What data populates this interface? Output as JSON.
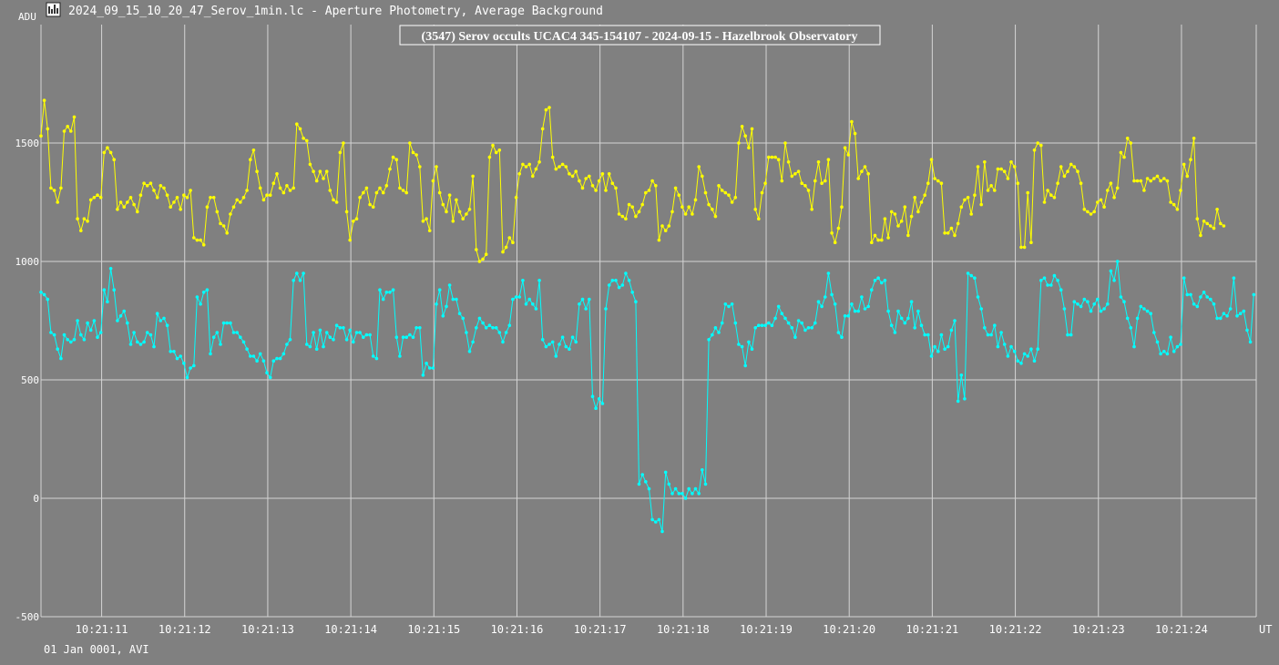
{
  "window": {
    "title": "2024_09_15_10_20_47_Serov_1min.lc - Aperture Photometry, Average Background",
    "icon": "lightcurve-app-icon"
  },
  "footer": {
    "date_label": "01 Jan 0001, AVI"
  },
  "colors": {
    "background": "#808080",
    "grid": "#d4d4d4",
    "axis_text": "#ffffff",
    "series_target": "#00ffff",
    "series_comparison": "#ffff00"
  },
  "chart_data": {
    "type": "line",
    "title": "(3547) Serov occults UCAC4 345-154107 - 2024-09-15 - Hazelbrook Observatory",
    "ylabel": "ADU",
    "xlabel": "UT",
    "ylim": [
      -500,
      2000
    ],
    "yticks": [
      -500,
      0,
      500,
      1000,
      1500
    ],
    "xlim": [
      0,
      14.63
    ],
    "xticks": [
      {
        "value": 0.73,
        "label": "10:21:11"
      },
      {
        "value": 1.73,
        "label": "10:21:12"
      },
      {
        "value": 2.73,
        "label": "10:21:13"
      },
      {
        "value": 3.73,
        "label": "10:21:14"
      },
      {
        "value": 4.73,
        "label": "10:21:15"
      },
      {
        "value": 5.73,
        "label": "10:21:16"
      },
      {
        "value": 6.73,
        "label": "10:21:17"
      },
      {
        "value": 7.73,
        "label": "10:21:18"
      },
      {
        "value": 8.73,
        "label": "10:21:19"
      },
      {
        "value": 9.73,
        "label": "10:21:20"
      },
      {
        "value": 10.73,
        "label": "10:21:21"
      },
      {
        "value": 11.73,
        "label": "10:21:22"
      },
      {
        "value": 12.73,
        "label": "10:21:23"
      },
      {
        "value": 13.73,
        "label": "10:21:24"
      }
    ],
    "grid": true,
    "x_step": 0.04,
    "series": [
      {
        "color": "#ffff00",
        "values": [
          1530,
          1680,
          1560,
          1310,
          1300,
          1250,
          1310,
          1550,
          1570,
          1550,
          1610,
          1180,
          1130,
          1180,
          1170,
          1260,
          1270,
          1280,
          1270,
          1460,
          1480,
          1460,
          1430,
          1220,
          1250,
          1230,
          1250,
          1270,
          1240,
          1210,
          1280,
          1330,
          1320,
          1330,
          1300,
          1270,
          1320,
          1310,
          1280,
          1230,
          1250,
          1270,
          1220,
          1280,
          1270,
          1300,
          1100,
          1090,
          1090,
          1070,
          1230,
          1270,
          1270,
          1210,
          1160,
          1150,
          1120,
          1200,
          1230,
          1260,
          1250,
          1270,
          1300,
          1430,
          1470,
          1380,
          1310,
          1260,
          1280,
          1280,
          1330,
          1370,
          1310,
          1290,
          1320,
          1300,
          1310,
          1580,
          1560,
          1520,
          1510,
          1410,
          1380,
          1340,
          1380,
          1350,
          1380,
          1300,
          1260,
          1250,
          1460,
          1500,
          1210,
          1090,
          1170,
          1180,
          1270,
          1290,
          1310,
          1240,
          1230,
          1290,
          1310,
          1290,
          1320,
          1390,
          1440,
          1430,
          1310,
          1300,
          1290,
          1500,
          1460,
          1450,
          1400,
          1170,
          1180,
          1130,
          1340,
          1400,
          1290,
          1240,
          1210,
          1280,
          1170,
          1260,
          1210,
          1180,
          1200,
          1220,
          1360,
          1050,
          1000,
          1010,
          1030,
          1440,
          1490,
          1460,
          1470,
          1040,
          1060,
          1100,
          1080,
          1270,
          1370,
          1410,
          1400,
          1410,
          1360,
          1390,
          1420,
          1560,
          1640,
          1650,
          1440,
          1390,
          1400,
          1410,
          1400,
          1370,
          1360,
          1380,
          1340,
          1310,
          1350,
          1360,
          1320,
          1300,
          1340,
          1370,
          1300,
          1370,
          1330,
          1310,
          1200,
          1190,
          1180,
          1240,
          1230,
          1190,
          1210,
          1240,
          1290,
          1300,
          1340,
          1320,
          1090,
          1150,
          1130,
          1150,
          1210,
          1310,
          1280,
          1230,
          1200,
          1230,
          1200,
          1260,
          1400,
          1360,
          1290,
          1240,
          1220,
          1190,
          1320,
          1300,
          1290,
          1280,
          1250,
          1270,
          1500,
          1570,
          1530,
          1480,
          1560,
          1220,
          1180,
          1290,
          1330,
          1440,
          1440,
          1440,
          1430,
          1340,
          1500,
          1420,
          1360,
          1370,
          1380,
          1330,
          1320,
          1300,
          1220,
          1340,
          1420,
          1330,
          1340,
          1430,
          1120,
          1080,
          1140,
          1230,
          1480,
          1450,
          1590,
          1540,
          1350,
          1380,
          1400,
          1370,
          1080,
          1110,
          1090,
          1090,
          1180,
          1100,
          1210,
          1200,
          1150,
          1170,
          1230,
          1110,
          1190,
          1270,
          1210,
          1250,
          1280,
          1330,
          1430,
          1350,
          1340,
          1330,
          1120,
          1120,
          1140,
          1110,
          1160,
          1230,
          1260,
          1270,
          1200,
          1280,
          1400,
          1240,
          1420,
          1300,
          1320,
          1300,
          1390,
          1390,
          1380,
          1350,
          1420,
          1400,
          1330,
          1060,
          1060,
          1290,
          1080,
          1470,
          1500,
          1490,
          1250,
          1300,
          1280,
          1270,
          1330,
          1400,
          1360,
          1380,
          1410,
          1400,
          1380,
          1330,
          1220,
          1210,
          1200,
          1210,
          1250,
          1260,
          1230,
          1300,
          1330,
          1270,
          1310,
          1460,
          1440,
          1520,
          1500,
          1340,
          1340,
          1340,
          1300,
          1350,
          1340,
          1350,
          1360,
          1340,
          1350,
          1340,
          1250,
          1240,
          1220,
          1300,
          1410,
          1360,
          1430,
          1520,
          1180,
          1110,
          1170,
          1160,
          1150,
          1140,
          1220,
          1160,
          1150
        ]
      },
      {
        "color": "#00ffff",
        "values": [
          870,
          860,
          840,
          700,
          690,
          630,
          590,
          690,
          670,
          660,
          670,
          750,
          690,
          670,
          740,
          710,
          750,
          680,
          700,
          880,
          830,
          970,
          880,
          750,
          770,
          790,
          740,
          650,
          700,
          660,
          650,
          660,
          700,
          690,
          640,
          780,
          750,
          760,
          730,
          620,
          620,
          590,
          600,
          570,
          510,
          550,
          560,
          850,
          820,
          870,
          880,
          610,
          680,
          700,
          650,
          740,
          740,
          740,
          700,
          700,
          680,
          660,
          630,
          600,
          600,
          580,
          610,
          580,
          530,
          510,
          580,
          590,
          590,
          610,
          650,
          670,
          920,
          950,
          920,
          950,
          650,
          640,
          700,
          630,
          710,
          640,
          700,
          680,
          670,
          730,
          720,
          720,
          670,
          710,
          660,
          700,
          700,
          680,
          690,
          690,
          600,
          590,
          880,
          840,
          870,
          870,
          880,
          680,
          600,
          680,
          680,
          690,
          680,
          720,
          720,
          520,
          570,
          550,
          550,
          820,
          880,
          770,
          810,
          900,
          840,
          840,
          780,
          760,
          700,
          620,
          660,
          720,
          760,
          740,
          720,
          730,
          720,
          720,
          700,
          660,
          700,
          730,
          840,
          850,
          850,
          920,
          820,
          840,
          820,
          800,
          920,
          670,
          640,
          650,
          660,
          600,
          650,
          680,
          640,
          630,
          680,
          660,
          820,
          840,
          800,
          840,
          430,
          380,
          420,
          400,
          800,
          900,
          920,
          920,
          890,
          900,
          950,
          920,
          870,
          830,
          60,
          100,
          70,
          40,
          -90,
          -100,
          -90,
          -140,
          110,
          60,
          20,
          40,
          20,
          20,
          0,
          40,
          20,
          40,
          20,
          120,
          60,
          670,
          690,
          720,
          700,
          740,
          820,
          810,
          820,
          740,
          650,
          640,
          560,
          660,
          630,
          720,
          730,
          730,
          730,
          740,
          730,
          760,
          810,
          780,
          760,
          740,
          720,
          680,
          750,
          740,
          710,
          720,
          720,
          740,
          830,
          810,
          850,
          950,
          860,
          820,
          700,
          680,
          770,
          770,
          820,
          790,
          790,
          850,
          800,
          810,
          880,
          920,
          930,
          910,
          920,
          790,
          730,
          700,
          790,
          760,
          740,
          760,
          830,
          720,
          790,
          730,
          690,
          690,
          600,
          640,
          620,
          690,
          630,
          640,
          710,
          750,
          410,
          520,
          420,
          950,
          940,
          930,
          850,
          800,
          720,
          690,
          690,
          730,
          640,
          700,
          650,
          600,
          640,
          620,
          580,
          570,
          610,
          600,
          630,
          580,
          630,
          920,
          930,
          900,
          900,
          940,
          920,
          880,
          800,
          690,
          690,
          830,
          820,
          810,
          840,
          830,
          790,
          820,
          840,
          790,
          800,
          820,
          960,
          920,
          1000,
          850,
          830,
          760,
          720,
          640,
          760,
          810,
          800,
          790,
          780,
          700,
          660,
          610,
          620,
          610,
          680,
          620,
          640,
          650,
          930,
          860,
          860,
          820,
          810,
          850,
          870,
          850,
          840,
          820,
          760,
          760,
          780,
          770,
          800,
          930,
          770,
          780,
          790,
          710,
          660,
          860
        ]
      }
    ]
  }
}
